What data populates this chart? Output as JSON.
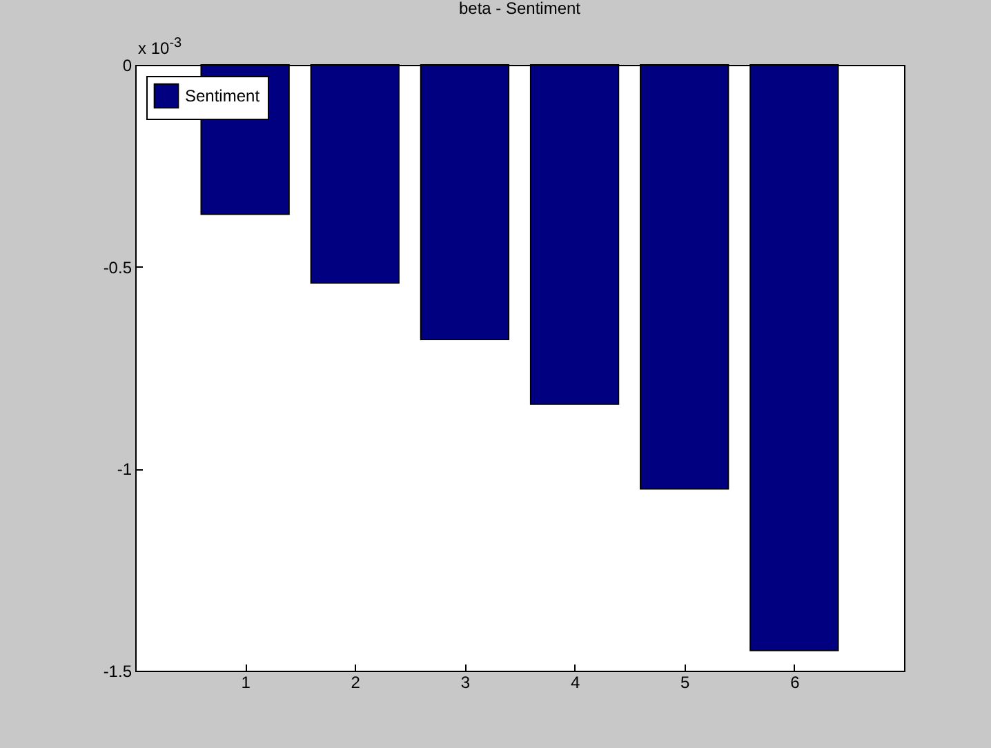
{
  "chart_data": {
    "type": "bar",
    "title": "beta - Sentiment",
    "x": [
      1,
      2,
      3,
      4,
      5,
      6
    ],
    "series": [
      {
        "name": "Sentiment",
        "color": "#000080",
        "values": [
          -0.37,
          -0.54,
          -0.68,
          -0.84,
          -1.05,
          -1.45
        ]
      }
    ],
    "xlim": [
      0,
      7
    ],
    "xticks": [
      1,
      2,
      3,
      4,
      5,
      6
    ],
    "ylim": [
      -1.5,
      0
    ],
    "yticks": [
      -1.5,
      -1,
      -0.5,
      0
    ],
    "grid": false,
    "legend": "top left",
    "annotations": [
      "x 10$^{-3}$"
    ]
  }
}
